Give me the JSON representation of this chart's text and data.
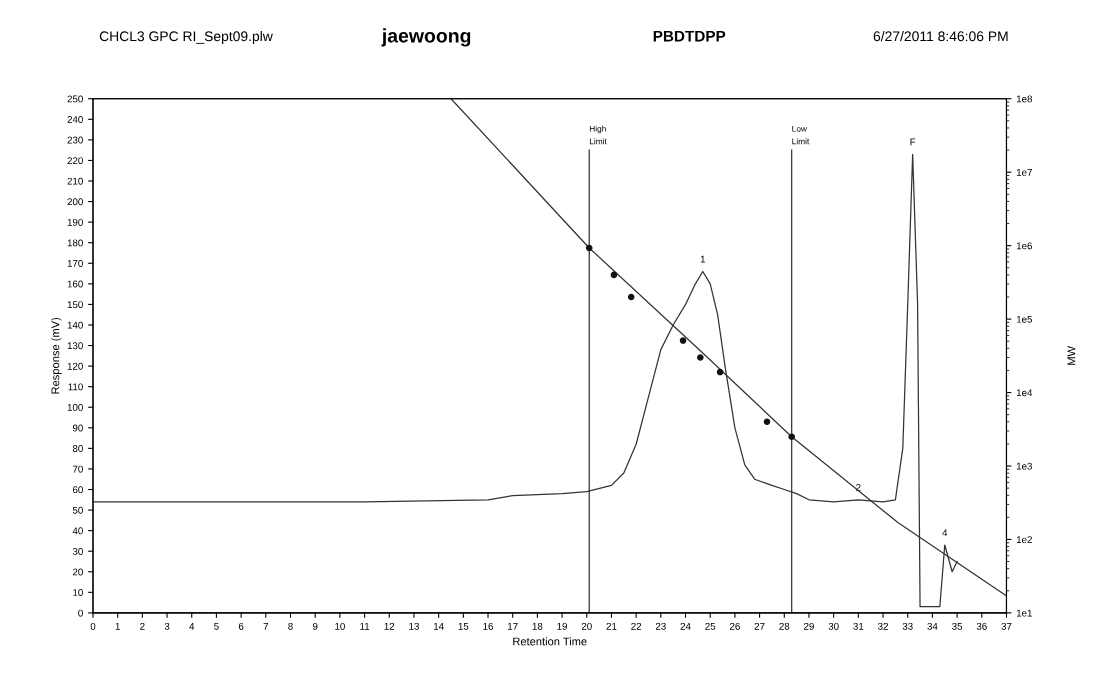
{
  "chart_data": {
    "type": "line",
    "title": "PBDTDPP",
    "xlabel": "Retention Time",
    "ylabel": "Response (mV)",
    "y2label": "MW",
    "annotations": [
      "CHCL3 GPC RI_Sept09.plw",
      "jaewoong",
      "6/27/2011 8:46:06 PM",
      {
        "text": "1",
        "x": 24.7,
        "y": 166
      },
      {
        "text": "2",
        "x": 31,
        "y": 55
      },
      {
        "text": "F",
        "x": 33.2,
        "y": 223
      },
      {
        "text": "4",
        "x": 34.5,
        "y": 33
      }
    ],
    "xlim": [
      0,
      37
    ],
    "xticks": [
      0,
      1,
      2,
      3,
      4,
      5,
      6,
      7,
      8,
      9,
      10,
      11,
      12,
      13,
      14,
      15,
      16,
      17,
      18,
      19,
      20,
      21,
      22,
      23,
      24,
      25,
      26,
      27,
      28,
      29,
      30,
      31,
      32,
      33,
      34,
      35,
      36,
      37
    ],
    "ylim": [
      0,
      250
    ],
    "yticks": [
      0,
      10,
      20,
      30,
      40,
      50,
      60,
      70,
      80,
      90,
      100,
      110,
      120,
      130,
      140,
      150,
      160,
      170,
      180,
      190,
      200,
      210,
      220,
      230,
      240,
      250
    ],
    "y2lim": [
      10,
      100000000
    ],
    "y2ticks": [
      {
        "value": 10,
        "label": "1e1"
      },
      {
        "value": 100,
        "label": "1e2"
      },
      {
        "value": 1000,
        "label": "1e3"
      },
      {
        "value": 10000,
        "label": "1e4"
      },
      {
        "value": 100000,
        "label": "1e5"
      },
      {
        "value": 1000000,
        "label": "1e6"
      },
      {
        "value": 10000000,
        "label": "1e7"
      },
      {
        "value": 100000000,
        "label": "1e8"
      }
    ],
    "log": "y2",
    "grid": false,
    "legend": false,
    "ref_lines": [
      {
        "axis": "x",
        "value": 20.1,
        "label": "High\nLimit",
        "color": "#333333"
      },
      {
        "axis": "x",
        "value": 28.3,
        "label": "Low\nLimit",
        "color": "#333333"
      }
    ],
    "series": [
      {
        "axis": "y",
        "color": "#333333",
        "x": [
          0,
          8,
          11,
          16,
          17,
          19,
          20,
          21,
          21.5,
          22,
          22.5,
          23,
          23.5,
          24,
          24.4,
          24.7,
          25,
          25.3,
          25.6,
          26,
          26.4,
          26.8,
          27.5,
          28,
          28.5,
          29,
          30,
          31,
          32,
          32.5,
          32.8,
          33,
          33.2,
          33.4,
          33.5,
          34.3,
          34.5,
          34.8,
          35
        ],
        "values": [
          54,
          54,
          54,
          55,
          57,
          58,
          59,
          62,
          68,
          82,
          105,
          128,
          140,
          150,
          160,
          166,
          160,
          145,
          120,
          90,
          72,
          65,
          62,
          60,
          58,
          55,
          54,
          55,
          54,
          55,
          80,
          150,
          223,
          150,
          3,
          3,
          33,
          20,
          25
        ]
      },
      {
        "axis": "y2",
        "color": "#333333",
        "x": [
          14.5,
          20.1,
          24.6,
          28.3,
          32.6,
          37
        ],
        "values": [
          100000000,
          930000,
          37000,
          2500,
          170,
          17
        ]
      },
      {
        "type": "scatter",
        "axis": "y2",
        "color": "#111111",
        "marker": "circle",
        "x": [
          20.1,
          21.1,
          21.8,
          23.9,
          24.6,
          25.4,
          27.3,
          28.3
        ],
        "values": [
          930000,
          400000,
          200000,
          51000,
          30000,
          19000,
          4000,
          2500
        ]
      }
    ]
  }
}
